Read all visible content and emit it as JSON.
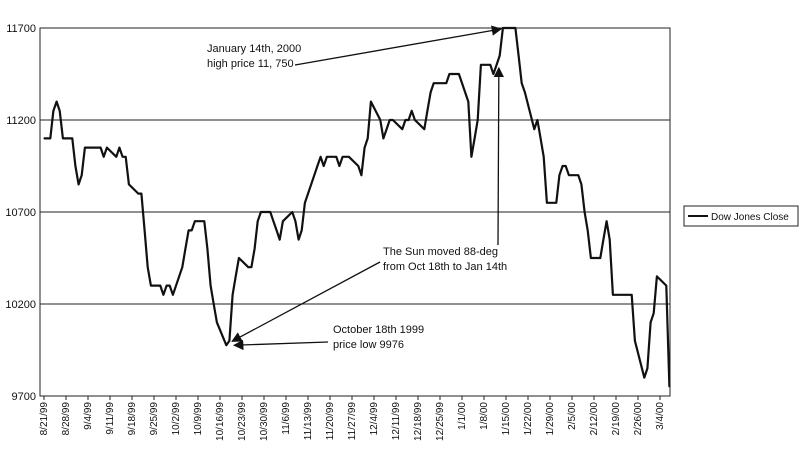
{
  "chart_data": {
    "type": "line",
    "title": "",
    "xlabel": "",
    "ylabel": "",
    "ylim": [
      9700,
      11700
    ],
    "yticks": [
      9700,
      10200,
      10700,
      11200,
      11700
    ],
    "grid": "horizontal",
    "legend": {
      "position": "right",
      "entries": [
        "Dow Jones Close"
      ]
    },
    "x_tick_labels": [
      "8/21/99",
      "8/28/99",
      "9/4/99",
      "9/11/99",
      "9/18/99",
      "9/25/99",
      "10/2/99",
      "10/9/99",
      "10/16/99",
      "10/23/99",
      "10/30/99",
      "11/6/99",
      "11/13/99",
      "11/20/99",
      "11/27/99",
      "12/4/99",
      "12/11/99",
      "12/18/99",
      "12/25/99",
      "1/1/00",
      "1/8/00",
      "1/15/00",
      "1/22/00",
      "1/29/00",
      "2/5/00",
      "2/12/00",
      "2/19/00",
      "2/26/00",
      "3/4/00"
    ],
    "series": [
      {
        "name": "Dow Jones Close",
        "color": "#111111",
        "points": [
          [
            "8/21/99",
            11100
          ],
          [
            "8/23/99",
            11100
          ],
          [
            "8/24/99",
            11250
          ],
          [
            "8/25/99",
            11300
          ],
          [
            "8/26/99",
            11250
          ],
          [
            "8/27/99",
            11100
          ],
          [
            "8/30/99",
            11100
          ],
          [
            "8/31/99",
            10950
          ],
          [
            "9/1/99",
            10850
          ],
          [
            "9/2/99",
            10900
          ],
          [
            "9/3/99",
            11050
          ],
          [
            "9/7/99",
            11050
          ],
          [
            "9/8/99",
            11050
          ],
          [
            "9/9/99",
            11000
          ],
          [
            "9/10/99",
            11050
          ],
          [
            "9/13/99",
            11000
          ],
          [
            "9/14/99",
            11050
          ],
          [
            "9/15/99",
            11000
          ],
          [
            "9/16/99",
            11000
          ],
          [
            "9/17/99",
            10850
          ],
          [
            "9/20/99",
            10800
          ],
          [
            "9/21/99",
            10800
          ],
          [
            "9/22/99",
            10600
          ],
          [
            "9/23/99",
            10400
          ],
          [
            "9/24/99",
            10300
          ],
          [
            "9/27/99",
            10300
          ],
          [
            "9/28/99",
            10250
          ],
          [
            "9/29/99",
            10300
          ],
          [
            "9/30/99",
            10300
          ],
          [
            "10/1/99",
            10250
          ],
          [
            "10/4/99",
            10400
          ],
          [
            "10/5/99",
            10500
          ],
          [
            "10/6/99",
            10600
          ],
          [
            "10/7/99",
            10600
          ],
          [
            "10/8/99",
            10650
          ],
          [
            "10/11/99",
            10650
          ],
          [
            "10/12/99",
            10500
          ],
          [
            "10/13/99",
            10300
          ],
          [
            "10/14/99",
            10200
          ],
          [
            "10/15/99",
            10100
          ],
          [
            "10/18/99",
            9976
          ],
          [
            "10/19/99",
            10000
          ],
          [
            "10/20/99",
            10250
          ],
          [
            "10/21/99",
            10350
          ],
          [
            "10/22/99",
            10450
          ],
          [
            "10/25/99",
            10400
          ],
          [
            "10/26/99",
            10400
          ],
          [
            "10/27/99",
            10500
          ],
          [
            "10/28/99",
            10650
          ],
          [
            "10/29/99",
            10700
          ],
          [
            "11/1/99",
            10700
          ],
          [
            "11/2/99",
            10650
          ],
          [
            "11/3/99",
            10600
          ],
          [
            "11/4/99",
            10550
          ],
          [
            "11/5/99",
            10650
          ],
          [
            "11/8/99",
            10700
          ],
          [
            "11/9/99",
            10650
          ],
          [
            "11/10/99",
            10550
          ],
          [
            "11/11/99",
            10600
          ],
          [
            "11/12/99",
            10750
          ],
          [
            "11/15/99",
            10900
          ],
          [
            "11/16/99",
            10950
          ],
          [
            "11/17/99",
            11000
          ],
          [
            "11/18/99",
            10950
          ],
          [
            "11/19/99",
            11000
          ],
          [
            "11/22/99",
            11000
          ],
          [
            "11/23/99",
            10950
          ],
          [
            "11/24/99",
            11000
          ],
          [
            "11/26/99",
            11000
          ],
          [
            "11/29/99",
            10950
          ],
          [
            "11/30/99",
            10900
          ],
          [
            "12/1/99",
            11050
          ],
          [
            "12/2/99",
            11100
          ],
          [
            "12/3/99",
            11300
          ],
          [
            "12/6/99",
            11200
          ],
          [
            "12/7/99",
            11100
          ],
          [
            "12/8/99",
            11150
          ],
          [
            "12/9/99",
            11200
          ],
          [
            "12/10/99",
            11200
          ],
          [
            "12/13/99",
            11150
          ],
          [
            "12/14/99",
            11200
          ],
          [
            "12/15/99",
            11200
          ],
          [
            "12/16/99",
            11250
          ],
          [
            "12/17/99",
            11200
          ],
          [
            "12/20/99",
            11150
          ],
          [
            "12/21/99",
            11250
          ],
          [
            "12/22/99",
            11350
          ],
          [
            "12/23/99",
            11400
          ],
          [
            "12/27/99",
            11400
          ],
          [
            "12/28/99",
            11450
          ],
          [
            "12/29/99",
            11450
          ],
          [
            "12/30/99",
            11450
          ],
          [
            "12/31/99",
            11450
          ],
          [
            "1/3/00",
            11300
          ],
          [
            "1/4/00",
            11000
          ],
          [
            "1/5/00",
            11100
          ],
          [
            "1/6/00",
            11200
          ],
          [
            "1/7/00",
            11500
          ],
          [
            "1/10/00",
            11500
          ],
          [
            "1/11/00",
            11450
          ],
          [
            "1/12/00",
            11500
          ],
          [
            "1/13/00",
            11550
          ],
          [
            "1/14/00",
            11700
          ],
          [
            "1/18/00",
            11700
          ],
          [
            "1/19/00",
            11550
          ],
          [
            "1/20/00",
            11400
          ],
          [
            "1/21/00",
            11350
          ],
          [
            "1/24/00",
            11150
          ],
          [
            "1/25/00",
            11200
          ],
          [
            "1/26/00",
            11100
          ],
          [
            "1/27/00",
            11000
          ],
          [
            "1/28/00",
            10750
          ],
          [
            "1/31/00",
            10750
          ],
          [
            "2/1/00",
            10900
          ],
          [
            "2/2/00",
            10950
          ],
          [
            "2/3/00",
            10950
          ],
          [
            "2/4/00",
            10900
          ],
          [
            "2/7/00",
            10900
          ],
          [
            "2/8/00",
            10850
          ],
          [
            "2/9/00",
            10700
          ],
          [
            "2/10/00",
            10600
          ],
          [
            "2/11/00",
            10450
          ],
          [
            "2/14/00",
            10450
          ],
          [
            "2/15/00",
            10550
          ],
          [
            "2/16/00",
            10650
          ],
          [
            "2/17/00",
            10550
          ],
          [
            "2/18/00",
            10250
          ],
          [
            "2/22/00",
            10250
          ],
          [
            "2/23/00",
            10250
          ],
          [
            "2/24/00",
            10250
          ],
          [
            "2/25/00",
            10000
          ],
          [
            "2/28/00",
            9800
          ],
          [
            "2/29/00",
            9850
          ],
          [
            "3/1/00",
            10100
          ],
          [
            "3/2/00",
            10150
          ],
          [
            "3/3/00",
            10350
          ],
          [
            "3/6/00",
            10300
          ],
          [
            "3/7/00",
            9750
          ]
        ]
      }
    ],
    "annotations": [
      {
        "lines": [
          "January 14th, 2000",
          "high price 11, 750"
        ],
        "point": [
          "1/14/00",
          11700
        ]
      },
      {
        "lines": [
          "The Sun moved 88-deg",
          "from Oct 18th to Jan 14th"
        ],
        "points": [
          [
            "10/18/99",
            9976
          ],
          [
            "1/14/00",
            11700
          ]
        ]
      },
      {
        "lines": [
          "October 18th 1999",
          "price low 9976"
        ],
        "point": [
          "10/18/99",
          9976
        ]
      }
    ]
  }
}
